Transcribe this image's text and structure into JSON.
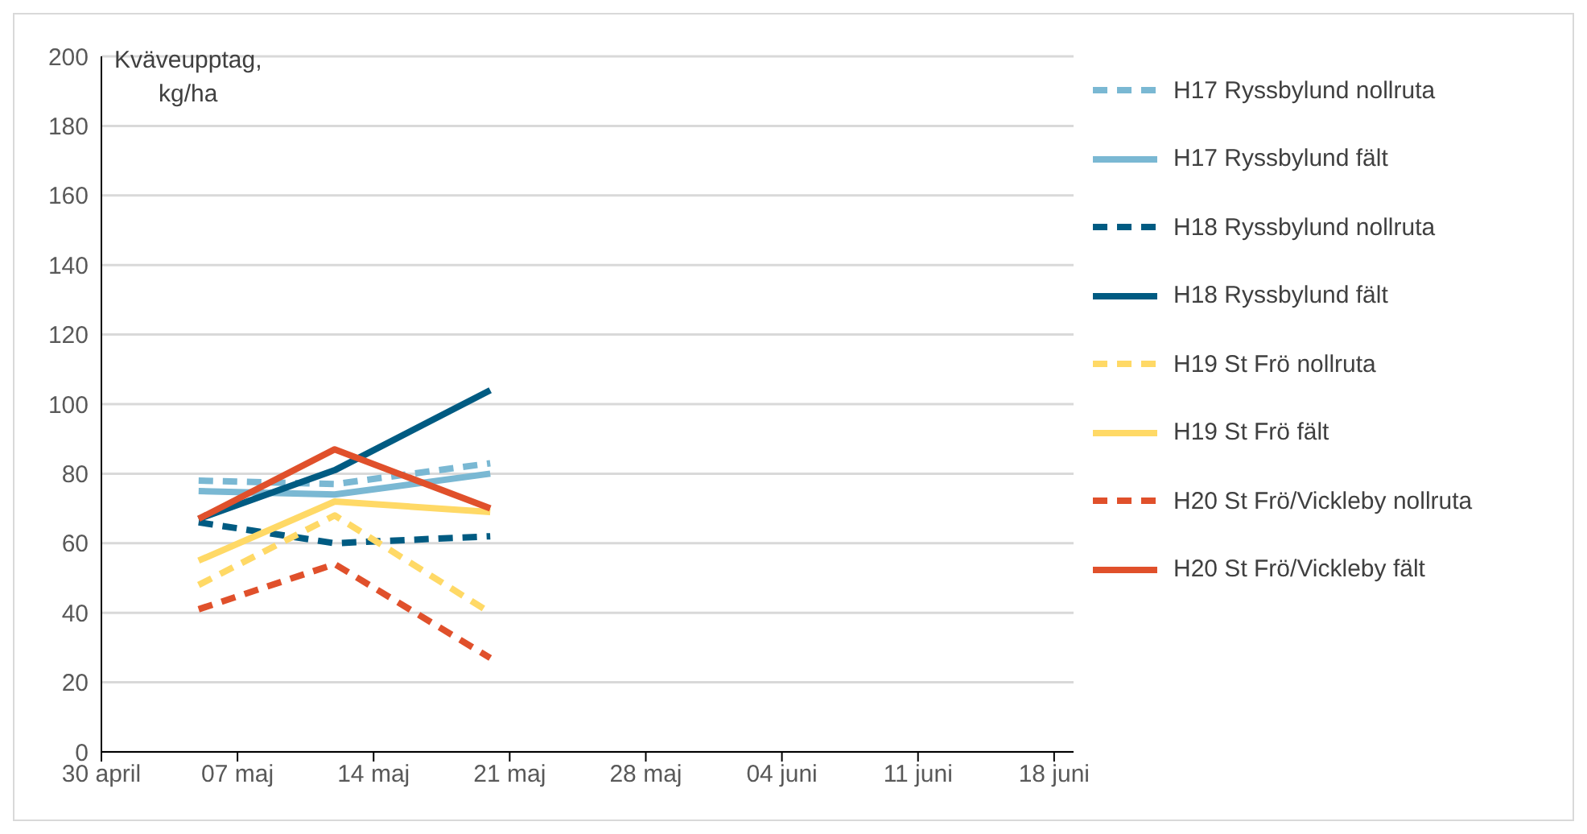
{
  "chart_data": {
    "type": "line",
    "ylabel": "Kväveupptag,\nkg/ha",
    "x": [
      "--05-05",
      "--05-12",
      "--05-20"
    ],
    "xlim": [
      "--04-30",
      "--06-19"
    ],
    "xticks": [
      {
        "value": "--04-30",
        "label": "30 april"
      },
      {
        "value": "--05-07",
        "label": "07 maj"
      },
      {
        "value": "--05-14",
        "label": "14 maj"
      },
      {
        "value": "--05-21",
        "label": "21 maj"
      },
      {
        "value": "--05-28",
        "label": "28 maj"
      },
      {
        "value": "--06-04",
        "label": "04 juni"
      },
      {
        "value": "--06-11",
        "label": "11 juni"
      },
      {
        "value": "--06-18",
        "label": "18 juni"
      }
    ],
    "ylim": [
      0,
      200
    ],
    "yticks": [
      0,
      20,
      40,
      60,
      80,
      100,
      120,
      140,
      160,
      180,
      200
    ],
    "grid": "y",
    "legend": "right",
    "marker": "none",
    "series": [
      {
        "name": "H17 Ryssbylund nollruta",
        "color": "#7ab8d3",
        "line_style": "dashed",
        "values": [
          78,
          77,
          83
        ]
      },
      {
        "name": "H17 Ryssbylund fält",
        "color": "#7ab8d3",
        "line_style": "solid",
        "values": [
          75,
          74,
          80
        ]
      },
      {
        "name": "H18 Ryssbylund nollruta",
        "color": "#005b82",
        "line_style": "dashed",
        "values": [
          66,
          60,
          62
        ]
      },
      {
        "name": "H18 Ryssbylund fält",
        "color": "#005b82",
        "line_style": "solid",
        "values": [
          67,
          81,
          104
        ]
      },
      {
        "name": "H19 St Frö nollruta",
        "color": "#ffd966",
        "line_style": "dashed",
        "values": [
          48,
          68,
          40
        ]
      },
      {
        "name": "H19 St Frö fält",
        "color": "#ffd966",
        "line_style": "solid",
        "values": [
          55,
          72,
          69
        ]
      },
      {
        "name": "H20 St Frö/Vickleby nollruta",
        "color": "#e0502b",
        "line_style": "dashed",
        "values": [
          41,
          54,
          27
        ]
      },
      {
        "name": "H20 St Frö/Vickleby fält",
        "color": "#e0502b",
        "line_style": "solid",
        "values": [
          67,
          87,
          70
        ]
      }
    ]
  }
}
